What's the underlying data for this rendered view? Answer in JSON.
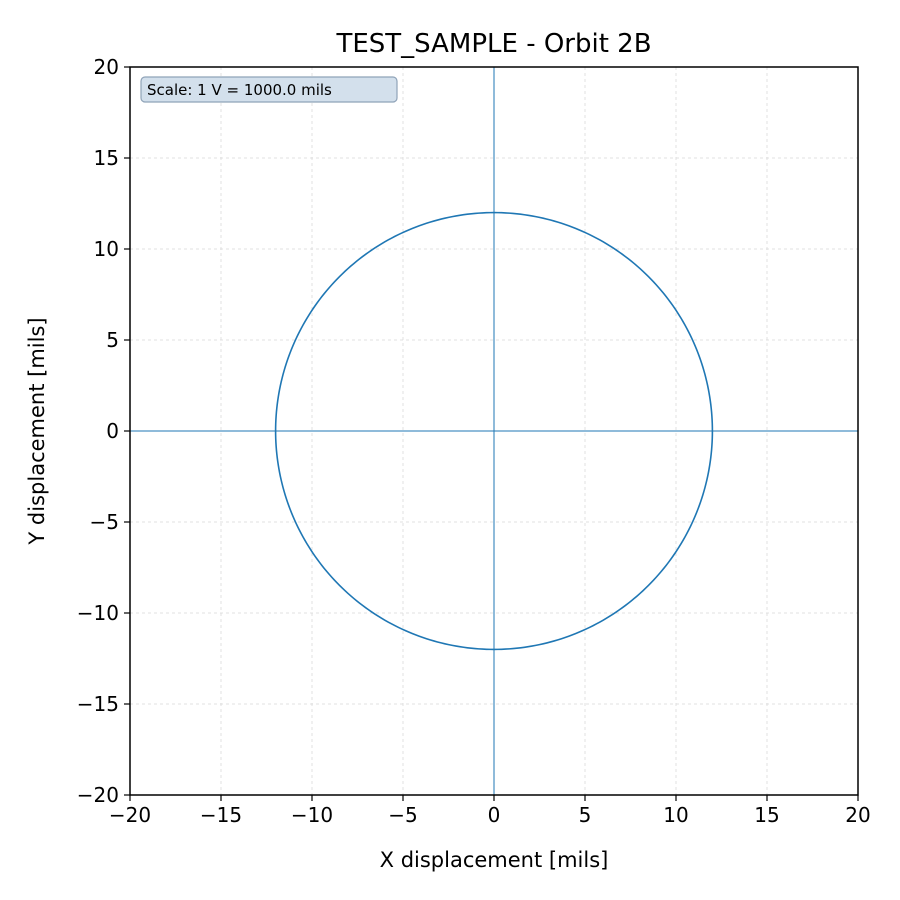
{
  "chart_data": {
    "type": "line",
    "title": "TEST_SAMPLE - Orbit 2B",
    "xlabel": "X displacement [mils]",
    "ylabel": "Y displacement [mils]",
    "xlim": [
      -20,
      20
    ],
    "ylim": [
      -20,
      20
    ],
    "xticks": [
      -20,
      -15,
      -10,
      -5,
      0,
      5,
      10,
      15,
      20
    ],
    "yticks": [
      -20,
      -15,
      -10,
      -5,
      0,
      5,
      10,
      15,
      20
    ],
    "xtick_labels": [
      "−20",
      "−15",
      "−10",
      "−5",
      "0",
      "5",
      "10",
      "15",
      "20"
    ],
    "ytick_labels": [
      "−20",
      "−15",
      "−10",
      "−5",
      "0",
      "5",
      "10",
      "15",
      "20"
    ],
    "grid": true,
    "annotation": "Scale: 1 V = 1000.0 mils",
    "annotation_position": "top-left",
    "orbit": {
      "center": [
        0,
        0
      ],
      "radius": 12
    },
    "series": [
      {
        "values_note": "",
        "x": [
          12,
          11.59,
          10.39,
          8.49,
          6.0,
          3.11,
          0,
          -3.11,
          -6.0,
          -8.49,
          -10.39,
          -11.59,
          -12,
          -11.59,
          -10.39,
          -8.49,
          -6.0,
          -3.11,
          0,
          3.11,
          6.0,
          8.49,
          10.39,
          11.59,
          12
        ],
        "y": [
          0,
          3.11,
          6.0,
          8.49,
          10.39,
          11.59,
          12,
          11.59,
          10.39,
          8.49,
          6.0,
          3.11,
          0,
          -3.11,
          -6.0,
          -8.49,
          -10.39,
          -11.59,
          -12,
          -11.59,
          -10.39,
          -8.49,
          -6.0,
          -3.11,
          0
        ]
      }
    ],
    "colors": {
      "series": "#1f77b4",
      "grid": "#d9d9d9",
      "box_fill": "#d3e0ec",
      "box_edge": "#8fa3b8"
    }
  }
}
